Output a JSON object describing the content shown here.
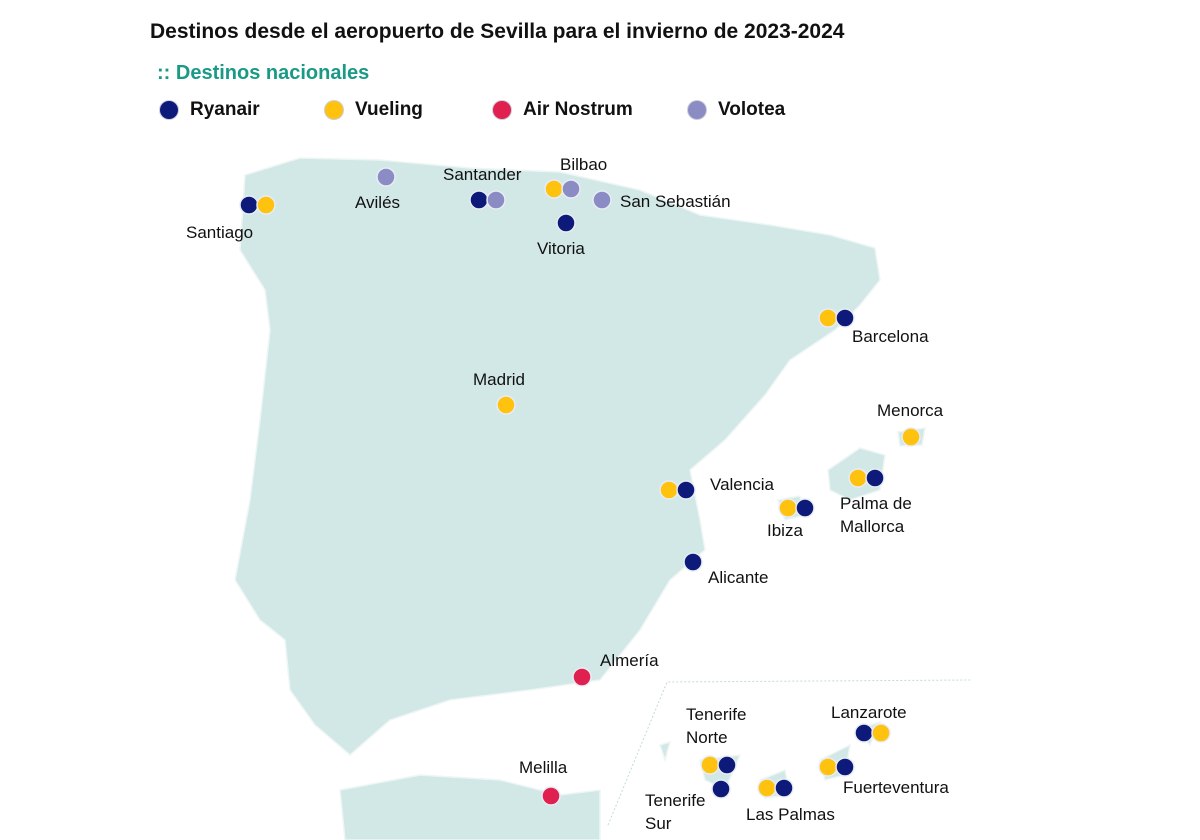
{
  "title": "Destinos desde el aeropuerto de Sevilla para el invierno de 2023-2024",
  "subtitle": ":: Destinos nacionales",
  "colors": {
    "Ryanair": "#0d1a7a",
    "Vueling": "#ffc20e",
    "Air Nostrum": "#e0204f",
    "Volotea": "#8c8cc4",
    "land": "#d2e8e6"
  },
  "legend": [
    {
      "airline": "Ryanair",
      "label": "Ryanair"
    },
    {
      "airline": "Vueling",
      "label": "Vueling"
    },
    {
      "airline": "Air Nostrum",
      "label": "Air Nostrum"
    },
    {
      "airline": "Volotea",
      "label": "Volotea"
    }
  ],
  "destinations": [
    {
      "name": "Santiago",
      "airlines": [
        "Ryanair",
        "Vueling"
      ]
    },
    {
      "name": "Avilés",
      "airlines": [
        "Volotea"
      ]
    },
    {
      "name": "Santander",
      "airlines": [
        "Ryanair",
        "Volotea"
      ]
    },
    {
      "name": "Bilbao",
      "airlines": [
        "Vueling",
        "Volotea"
      ]
    },
    {
      "name": "San Sebastián",
      "airlines": [
        "Volotea"
      ]
    },
    {
      "name": "Vitoria",
      "airlines": [
        "Ryanair"
      ]
    },
    {
      "name": "Barcelona",
      "airlines": [
        "Vueling",
        "Ryanair"
      ]
    },
    {
      "name": "Madrid",
      "airlines": [
        "Vueling"
      ]
    },
    {
      "name": "Menorca",
      "airlines": [
        "Vueling"
      ]
    },
    {
      "name": "Valencia",
      "airlines": [
        "Vueling",
        "Ryanair"
      ]
    },
    {
      "name": "Palma de",
      "name2": "Mallorca",
      "airlines": [
        "Vueling",
        "Ryanair"
      ]
    },
    {
      "name": "Ibiza",
      "airlines": [
        "Vueling",
        "Ryanair"
      ]
    },
    {
      "name": "Alicante",
      "airlines": [
        "Ryanair"
      ]
    },
    {
      "name": "Almería",
      "airlines": [
        "Air Nostrum"
      ]
    },
    {
      "name": "Melilla",
      "airlines": [
        "Air Nostrum"
      ]
    },
    {
      "name": "Tenerife",
      "name2": "Norte",
      "airlines": [
        "Vueling",
        "Ryanair"
      ]
    },
    {
      "name": "Tenerife",
      "name2": "Sur",
      "airlines": [
        "Ryanair"
      ]
    },
    {
      "name": "Las Palmas",
      "airlines": [
        "Vueling",
        "Ryanair"
      ]
    },
    {
      "name": "Lanzarote",
      "airlines": [
        "Ryanair",
        "Vueling"
      ]
    },
    {
      "name": "Fuerteventura",
      "airlines": [
        "Vueling",
        "Ryanair"
      ]
    }
  ]
}
